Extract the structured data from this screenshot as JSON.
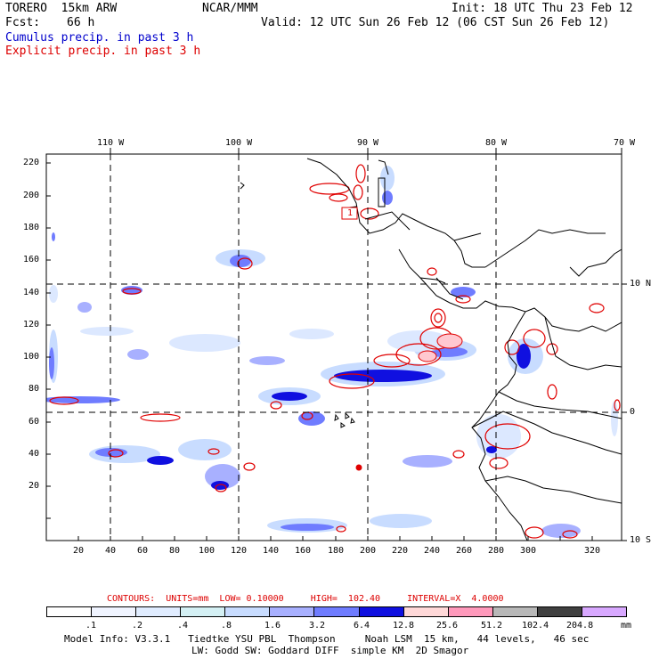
{
  "header": {
    "model": "TORERO  15km ARW",
    "center": "NCAR/MMM",
    "init": "Init: 18 UTC Thu 23 Feb 12",
    "fcst_label": "Fcst:",
    "fcst_value": "66 h",
    "valid": "Valid: 12 UTC Sun 26 Feb 12 (06 CST Sun 26 Feb 12)",
    "line_cumulus": "Cumulus precip. in past 3 h",
    "line_explicit": "Explicit precip. in past 3 h"
  },
  "map": {
    "lon_labels": [
      "110 W",
      "100 W",
      "90 W",
      "80 W",
      "70 W"
    ],
    "lat_labels": [
      "10 N",
      "0",
      "10 S"
    ],
    "y_ticks": [
      "220",
      "200",
      "180",
      "160",
      "140",
      "120",
      "100",
      "80",
      "60",
      "40",
      "20"
    ],
    "x_ticks": [
      "20",
      "40",
      "60",
      "80",
      "100",
      "120",
      "140",
      "160",
      "180",
      "200",
      "220",
      "240",
      "260",
      "280",
      "300",
      "320"
    ],
    "contour_label": "1",
    "colors": {
      "cumulus_light": "#c8dcff",
      "cumulus_mid": "#6f7cff",
      "cumulus_dark": "#1010e0",
      "explicit": "#e00000",
      "explicit_fill": "#ffc8d0",
      "coast": "#000000"
    }
  },
  "contours_line": "CONTOURS:  UNITS=mm  LOW= 0.10000     HIGH=  102.40     INTERVAL=X  4.0000",
  "legend": {
    "labels": [
      ".1",
      ".2",
      ".4",
      ".8",
      "1.6",
      "3.2",
      "6.4",
      "12.8",
      "25.6",
      "51.2",
      "102.4",
      "204.8"
    ],
    "unit": "mm",
    "colors": [
      "#ffffff",
      "#f0f4ff",
      "#e0ecff",
      "#d4f0f4",
      "#c8dcff",
      "#a8b0ff",
      "#6f7cff",
      "#1010e0",
      "#ffd8d8",
      "#ff99bb",
      "#b8b8b8",
      "#404040",
      "#d8a8ff"
    ]
  },
  "footer": {
    "line1": "Model Info: V3.3.1   Tiedtke YSU PBL  Thompson     Noah LSM  15 km,   44 levels,   46 sec",
    "line2": "LW: Godd SW: Goddard DIFF  simple KM  2D Smagor"
  }
}
